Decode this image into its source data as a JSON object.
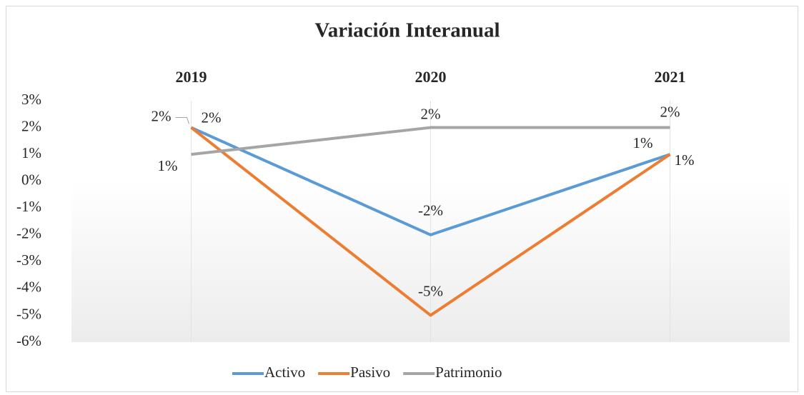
{
  "chart_data": {
    "type": "line",
    "title": "Variación Interanual",
    "categories": [
      "2019",
      "2020",
      "2021"
    ],
    "series": [
      {
        "name": "Activo",
        "color": "#5b9bd5",
        "values": [
          2,
          -2,
          1
        ],
        "value_labels": [
          "2%",
          "-2%",
          "1%"
        ]
      },
      {
        "name": "Pasivo",
        "color": "#ed7d31",
        "values": [
          2,
          -5,
          1
        ],
        "value_labels": [
          "2%",
          "-5%",
          "1%"
        ]
      },
      {
        "name": "Patrimonio",
        "color": "#a5a5a5",
        "values": [
          1,
          2,
          2
        ],
        "value_labels": [
          "1%",
          "2%",
          "2%"
        ]
      }
    ],
    "ylim": [
      -6,
      3
    ],
    "yticks": [
      {
        "value": 3,
        "label": "3%"
      },
      {
        "value": 2,
        "label": "2%"
      },
      {
        "value": 1,
        "label": "1%"
      },
      {
        "value": 0,
        "label": "0%"
      },
      {
        "value": -1,
        "label": "-1%"
      },
      {
        "value": -2,
        "label": "-2%"
      },
      {
        "value": -3,
        "label": "-3%"
      },
      {
        "value": -4,
        "label": "-4%"
      },
      {
        "value": -5,
        "label": "-5%"
      },
      {
        "value": -6,
        "label": "-6%"
      }
    ],
    "legend": "bottom"
  }
}
